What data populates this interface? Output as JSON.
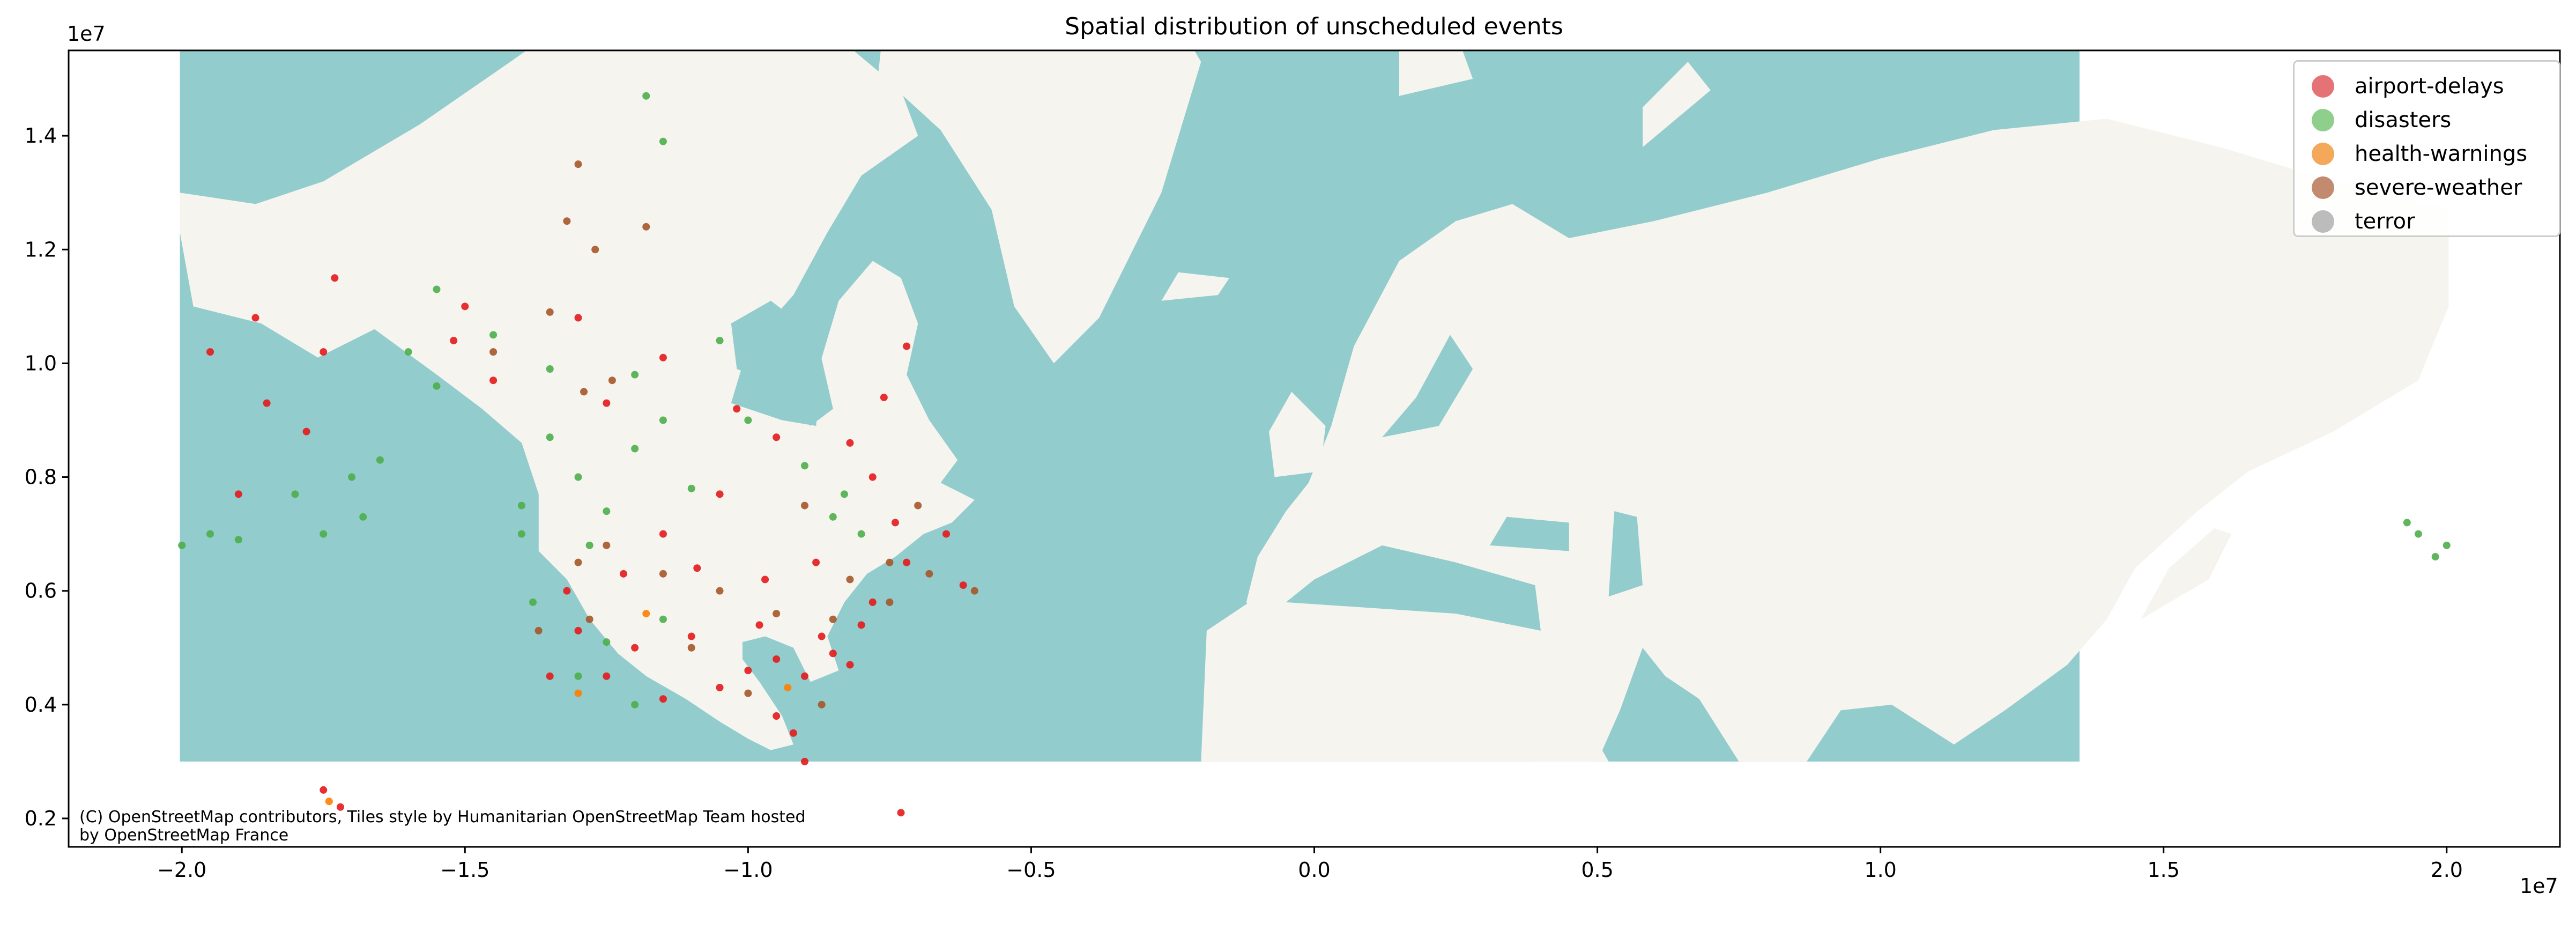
{
  "colors": {
    "ocean": "#92cccc",
    "land": "#f5f4ef",
    "background": "#ffffff",
    "axis": "#000000",
    "airport-delays": "#e41a1c",
    "disasters": "#4daf4a",
    "health-warnings": "#ff7f00",
    "severe-weather": "#a65628",
    "terror": "#999999"
  },
  "chart_data": {
    "type": "scatter",
    "title": "Spatial distribution of unscheduled events",
    "xlabel": "",
    "ylabel": "",
    "x_offset_label": "1e7",
    "y_offset_label": "1e7",
    "xlim": [
      -22000000,
      22000000
    ],
    "ylim": [
      1500000,
      15500000
    ],
    "x_ticks": [
      -20000000,
      -15000000,
      -10000000,
      -5000000,
      0,
      5000000,
      10000000,
      15000000,
      20000000
    ],
    "x_tick_labels": [
      "−2.0",
      "−1.5",
      "−1.0",
      "−0.5",
      "0.0",
      "0.5",
      "1.0",
      "1.5",
      "2.0"
    ],
    "y_ticks": [
      2000000,
      4000000,
      6000000,
      8000000,
      10000000,
      12000000,
      14000000
    ],
    "y_tick_labels": [
      "0.2",
      "0.4",
      "0.6",
      "0.8",
      "1.0",
      "1.2",
      "1.4"
    ],
    "grid": false,
    "legend_position": "top-right",
    "basemap_extent": [
      -20037508,
      20037508,
      1500000,
      15500000
    ],
    "attribution": "(C) OpenStreetMap contributors, Tiles style by Humanitarian OpenStreetMap Team hosted by OpenStreetMap France",
    "series": [
      {
        "name": "airport-delays",
        "color": "#e41a1c",
        "points": [
          [
            -9000000,
            4500000
          ],
          [
            -9500000,
            4800000
          ],
          [
            -8500000,
            4900000
          ],
          [
            -8200000,
            4700000
          ],
          [
            -10000000,
            4600000
          ],
          [
            -10500000,
            4300000
          ],
          [
            -11000000,
            5200000
          ],
          [
            -12000000,
            5000000
          ],
          [
            -12500000,
            4500000
          ],
          [
            -13000000,
            5300000
          ],
          [
            -13500000,
            4500000
          ],
          [
            -11500000,
            4100000
          ],
          [
            -9200000,
            3500000
          ],
          [
            -9000000,
            3000000
          ],
          [
            -8700000,
            5200000
          ],
          [
            -8000000,
            5400000
          ],
          [
            -7800000,
            5800000
          ],
          [
            -9800000,
            5400000
          ],
          [
            -9500000,
            3800000
          ],
          [
            -13200000,
            6000000
          ],
          [
            -12200000,
            6300000
          ],
          [
            -10900000,
            6400000
          ],
          [
            -7200000,
            6500000
          ],
          [
            -7400000,
            7200000
          ],
          [
            -7800000,
            8000000
          ],
          [
            -8200000,
            8600000
          ],
          [
            -7600000,
            9400000
          ],
          [
            -7200000,
            10300000
          ],
          [
            -15200000,
            10400000
          ],
          [
            -17500000,
            10200000
          ],
          [
            -17300000,
            11500000
          ],
          [
            -18500000,
            9300000
          ],
          [
            -18700000,
            10800000
          ],
          [
            -19500000,
            10200000
          ],
          [
            -19000000,
            7700000
          ],
          [
            -17800000,
            8800000
          ],
          [
            -15000000,
            11000000
          ],
          [
            -13000000,
            10800000
          ],
          [
            -11500000,
            10100000
          ],
          [
            -10200000,
            9200000
          ],
          [
            -9500000,
            8700000
          ],
          [
            -12500000,
            9300000
          ],
          [
            -14500000,
            9700000
          ],
          [
            -17500000,
            2500000
          ],
          [
            -17200000,
            2200000
          ],
          [
            -7300000,
            2100000
          ],
          [
            -6200000,
            6100000
          ],
          [
            -6500000,
            7000000
          ],
          [
            -10500000,
            7700000
          ],
          [
            -11500000,
            7000000
          ],
          [
            -9700000,
            6200000
          ],
          [
            -8800000,
            6500000
          ]
        ]
      },
      {
        "name": "disasters",
        "color": "#4daf4a",
        "points": [
          [
            -12000000,
            8500000
          ],
          [
            -13000000,
            8000000
          ],
          [
            -13500000,
            8700000
          ],
          [
            -11000000,
            7800000
          ],
          [
            -12500000,
            7400000
          ],
          [
            -14000000,
            7500000
          ],
          [
            -11500000,
            9000000
          ],
          [
            -12000000,
            9800000
          ],
          [
            -13500000,
            9900000
          ],
          [
            -14500000,
            10500000
          ],
          [
            -15500000,
            11300000
          ],
          [
            -10500000,
            10400000
          ],
          [
            -10000000,
            9000000
          ],
          [
            -9000000,
            8200000
          ],
          [
            -8500000,
            7300000
          ],
          [
            -8000000,
            7000000
          ],
          [
            -18000000,
            7700000
          ],
          [
            -17000000,
            8000000
          ],
          [
            -16500000,
            8300000
          ],
          [
            -17500000,
            7000000
          ],
          [
            -16800000,
            7300000
          ],
          [
            -19500000,
            7000000
          ],
          [
            -20000000,
            6800000
          ],
          [
            -19000000,
            6900000
          ],
          [
            -12500000,
            5100000
          ],
          [
            -13000000,
            4500000
          ],
          [
            -12000000,
            4000000
          ],
          [
            -11500000,
            5500000
          ],
          [
            -13800000,
            5800000
          ],
          [
            -12800000,
            6800000
          ],
          [
            -15500000,
            9600000
          ],
          [
            -14000000,
            7000000
          ],
          [
            -8300000,
            7700000
          ],
          [
            -11500000,
            13900000
          ],
          [
            -11800000,
            14700000
          ],
          [
            -16000000,
            10200000
          ],
          [
            19500000,
            7000000
          ],
          [
            20000000,
            6800000
          ],
          [
            19300000,
            7200000
          ],
          [
            19800000,
            6600000
          ]
        ]
      },
      {
        "name": "health-warnings",
        "color": "#ff7f00",
        "points": [
          [
            -17400000,
            2300000
          ],
          [
            -11800000,
            5600000
          ],
          [
            -9300000,
            4300000
          ],
          [
            -13000000,
            4200000
          ]
        ]
      },
      {
        "name": "severe-weather",
        "color": "#a65628",
        "points": [
          [
            -12500000,
            6800000
          ],
          [
            -13000000,
            6500000
          ],
          [
            -11500000,
            6300000
          ],
          [
            -10500000,
            6000000
          ],
          [
            -9500000,
            5600000
          ],
          [
            -8500000,
            5500000
          ],
          [
            -7500000,
            5800000
          ],
          [
            -6800000,
            6300000
          ],
          [
            -6000000,
            6000000
          ],
          [
            -7500000,
            6500000
          ],
          [
            -8200000,
            6200000
          ],
          [
            -12800000,
            5500000
          ],
          [
            -13700000,
            5300000
          ],
          [
            -11000000,
            5000000
          ],
          [
            -10000000,
            4200000
          ],
          [
            -8700000,
            4000000
          ],
          [
            -12400000,
            9700000
          ],
          [
            -13500000,
            10900000
          ],
          [
            -13200000,
            12500000
          ],
          [
            -12700000,
            12000000
          ],
          [
            -11800000,
            12400000
          ],
          [
            -13000000,
            13500000
          ],
          [
            -9000000,
            7500000
          ],
          [
            -7000000,
            7500000
          ],
          [
            -12900000,
            9500000
          ],
          [
            -14500000,
            10200000
          ]
        ]
      },
      {
        "name": "terror",
        "color": "#999999",
        "points": []
      }
    ]
  }
}
